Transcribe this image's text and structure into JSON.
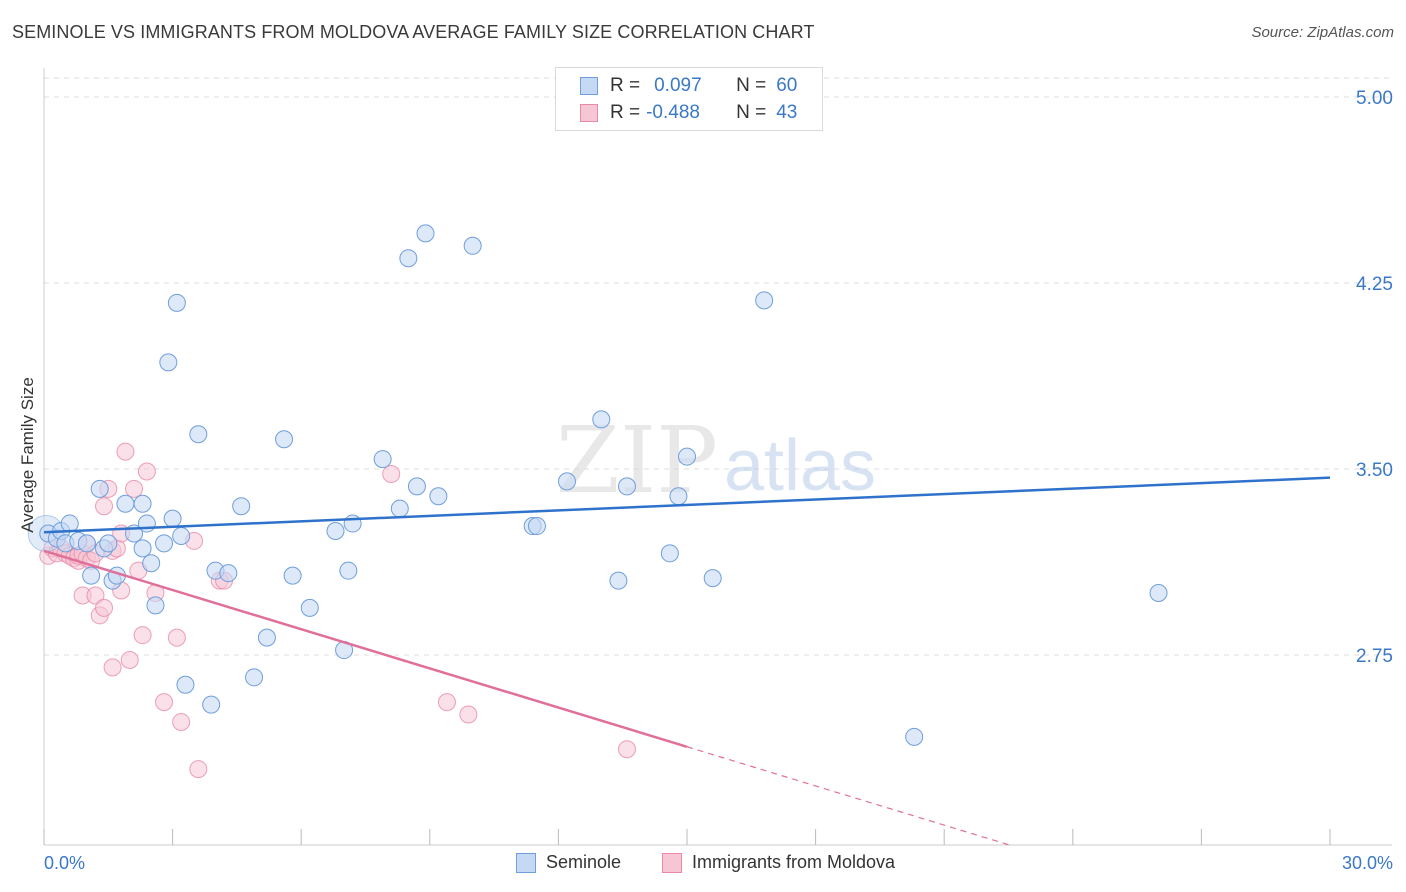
{
  "title": "SEMINOLE VS IMMIGRANTS FROM MOLDOVA AVERAGE FAMILY SIZE CORRELATION CHART",
  "source": "Source: ZipAtlas.com",
  "watermark": {
    "zip": "ZIP",
    "atlas": "atlas"
  },
  "legend": {
    "row1": {
      "r_label": "R =",
      "r_value": "0.097",
      "n_label": "N =",
      "n_value": "60"
    },
    "row2": {
      "r_label": "R =",
      "r_value": "-0.488",
      "n_label": "N =",
      "n_value": "43"
    }
  },
  "colors": {
    "seminole": "#6f9fdc",
    "seminole_fill": "#c6d9f4",
    "moldova": "#e98aa8",
    "moldova_fill": "#f6c6d5",
    "blue_line": "#2f72cc",
    "pink_line": "#e0709a",
    "tick_blue": "#3a78c8"
  },
  "chart_data": {
    "type": "scatter",
    "title": "SEMINOLE VS IMMIGRANTS FROM MOLDOVA AVERAGE FAMILY SIZE CORRELATION CHART",
    "xlabel": "",
    "ylabel": "Average Family Size",
    "xlim": [
      0,
      30
    ],
    "ylim": [
      2.0,
      5.1
    ],
    "x_tick_labels": [
      "0.0%",
      "30.0%"
    ],
    "y_ticks": [
      2.75,
      3.5,
      4.25,
      5.0
    ],
    "y_tick_labels": [
      "2.75",
      "3.50",
      "4.25",
      "5.00"
    ],
    "series": [
      {
        "name": "Seminole",
        "points": [
          [
            0.1,
            3.24
          ],
          [
            0.3,
            3.22
          ],
          [
            0.4,
            3.25
          ],
          [
            0.6,
            3.28
          ],
          [
            0.5,
            3.2
          ],
          [
            0.8,
            3.21
          ],
          [
            1.0,
            3.2
          ],
          [
            1.1,
            3.07
          ],
          [
            1.3,
            3.42
          ],
          [
            1.4,
            3.18
          ],
          [
            1.5,
            3.2
          ],
          [
            1.6,
            3.05
          ],
          [
            1.7,
            3.07
          ],
          [
            1.9,
            3.36
          ],
          [
            2.1,
            3.24
          ],
          [
            2.3,
            3.36
          ],
          [
            2.3,
            3.18
          ],
          [
            2.4,
            3.28
          ],
          [
            2.5,
            3.12
          ],
          [
            2.6,
            2.95
          ],
          [
            2.8,
            3.2
          ],
          [
            2.9,
            3.93
          ],
          [
            3.0,
            3.3
          ],
          [
            3.1,
            4.17
          ],
          [
            3.2,
            3.23
          ],
          [
            3.3,
            2.63
          ],
          [
            3.6,
            3.64
          ],
          [
            3.9,
            2.55
          ],
          [
            4.0,
            3.09
          ],
          [
            4.3,
            3.08
          ],
          [
            4.6,
            3.35
          ],
          [
            4.9,
            2.66
          ],
          [
            5.2,
            2.82
          ],
          [
            5.6,
            3.62
          ],
          [
            5.8,
            3.07
          ],
          [
            6.2,
            2.94
          ],
          [
            6.8,
            3.25
          ],
          [
            7.0,
            2.77
          ],
          [
            7.1,
            3.09
          ],
          [
            7.2,
            3.28
          ],
          [
            7.9,
            3.54
          ],
          [
            8.3,
            3.34
          ],
          [
            8.5,
            4.35
          ],
          [
            8.7,
            3.43
          ],
          [
            8.9,
            4.45
          ],
          [
            9.2,
            3.39
          ],
          [
            10.0,
            4.4
          ],
          [
            11.4,
            3.27
          ],
          [
            11.5,
            3.27
          ],
          [
            12.2,
            3.45
          ],
          [
            13.0,
            3.7
          ],
          [
            13.4,
            3.05
          ],
          [
            13.6,
            3.43
          ],
          [
            14.6,
            3.16
          ],
          [
            14.8,
            3.39
          ],
          [
            15.0,
            3.55
          ],
          [
            15.6,
            3.06
          ],
          [
            16.8,
            4.18
          ],
          [
            20.3,
            2.42
          ],
          [
            26.0,
            3.0
          ]
        ]
      },
      {
        "name": "Immigrants from Moldova",
        "points": [
          [
            0.1,
            3.15
          ],
          [
            0.2,
            3.18
          ],
          [
            0.3,
            3.16
          ],
          [
            0.4,
            3.18
          ],
          [
            0.5,
            3.16
          ],
          [
            0.6,
            3.15
          ],
          [
            0.7,
            3.14
          ],
          [
            0.8,
            3.13
          ],
          [
            0.8,
            3.15
          ],
          [
            0.9,
            3.16
          ],
          [
            0.9,
            2.99
          ],
          [
            1.0,
            3.14
          ],
          [
            1.0,
            3.2
          ],
          [
            1.1,
            3.13
          ],
          [
            1.2,
            3.16
          ],
          [
            1.2,
            2.99
          ],
          [
            1.3,
            2.91
          ],
          [
            1.4,
            3.35
          ],
          [
            1.4,
            2.94
          ],
          [
            1.5,
            3.42
          ],
          [
            1.6,
            3.17
          ],
          [
            1.6,
            2.7
          ],
          [
            1.7,
            3.18
          ],
          [
            1.8,
            3.24
          ],
          [
            1.8,
            3.01
          ],
          [
            1.9,
            3.57
          ],
          [
            2.0,
            2.73
          ],
          [
            2.1,
            3.42
          ],
          [
            2.2,
            3.09
          ],
          [
            2.3,
            2.83
          ],
          [
            2.4,
            3.49
          ],
          [
            2.6,
            3.0
          ],
          [
            2.8,
            2.56
          ],
          [
            3.1,
            2.82
          ],
          [
            3.2,
            2.48
          ],
          [
            3.5,
            3.21
          ],
          [
            3.6,
            2.29
          ],
          [
            4.1,
            3.05
          ],
          [
            4.2,
            3.05
          ],
          [
            8.1,
            3.48
          ],
          [
            9.4,
            2.56
          ],
          [
            9.9,
            2.51
          ],
          [
            13.6,
            2.37
          ]
        ]
      }
    ],
    "trendlines": [
      {
        "name": "Seminole",
        "x": [
          0,
          30
        ],
        "y": [
          3.245,
          3.465
        ]
      },
      {
        "name": "Immigrants from Moldova",
        "x": [
          0,
          15
        ],
        "y": [
          3.17,
          2.38
        ],
        "dashed_extension_to_x": 22.5
      }
    ]
  },
  "bottom_legend": {
    "seminole": "Seminole",
    "moldova": "Immigrants from Moldova"
  }
}
